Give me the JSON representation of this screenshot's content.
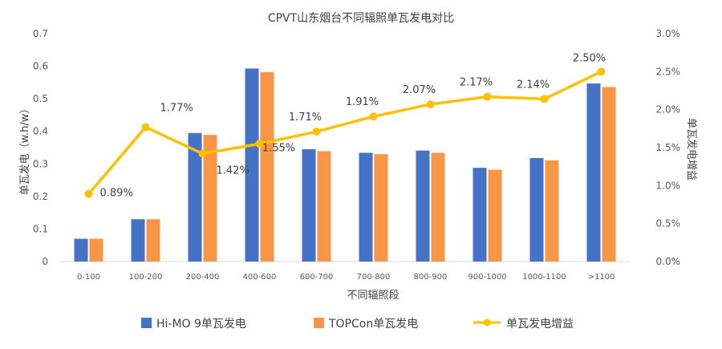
{
  "chart_data": {
    "type": "bar",
    "title": "CPVT山东烟台不同辐照单瓦发电对比",
    "xlabel": "不同辐照段",
    "ylabel": "单瓦发电（w.h/w）",
    "y2label": "单瓦发电增益",
    "categories": [
      "0-100",
      "100-200",
      "200-400",
      "400-600",
      "600-700",
      "700-800",
      "800-900",
      "900-1000",
      "1000-1100",
      ">1100"
    ],
    "ylim": [
      0,
      0.7
    ],
    "yticks": [
      "0",
      "0.1",
      "0.2",
      "0.3",
      "0.4",
      "0.5",
      "0.6",
      "0.7"
    ],
    "y2lim": [
      0,
      3.0
    ],
    "y2ticks": [
      "0.0%",
      "0.5%",
      "1.0%",
      "1.5%",
      "2.0%",
      "2.5%",
      "3.0%"
    ],
    "series": [
      {
        "name": "Hi-MO 9单瓦发电",
        "kind": "bar",
        "color": "#4472C4",
        "values": [
          0.07,
          0.13,
          0.395,
          0.593,
          0.345,
          0.334,
          0.341,
          0.288,
          0.318,
          0.547
        ]
      },
      {
        "name": "TOPCon单瓦发电",
        "kind": "bar",
        "color": "#F79646",
        "values": [
          0.07,
          0.13,
          0.389,
          0.582,
          0.339,
          0.33,
          0.334,
          0.282,
          0.311,
          0.536
        ]
      },
      {
        "name": "单瓦发电增益",
        "kind": "line",
        "color": "#FFC000",
        "axis": "right",
        "values": [
          0.89,
          1.77,
          1.42,
          1.55,
          1.71,
          1.91,
          2.07,
          2.17,
          2.14,
          2.5
        ],
        "labels": [
          "0.89%",
          "1.77%",
          "1.42%",
          "1.55%",
          "1.71%",
          "1.91%",
          "2.07%",
          "2.17%",
          "2.14%",
          "2.50%"
        ]
      }
    ],
    "legend_position": "bottom",
    "grid": false
  }
}
